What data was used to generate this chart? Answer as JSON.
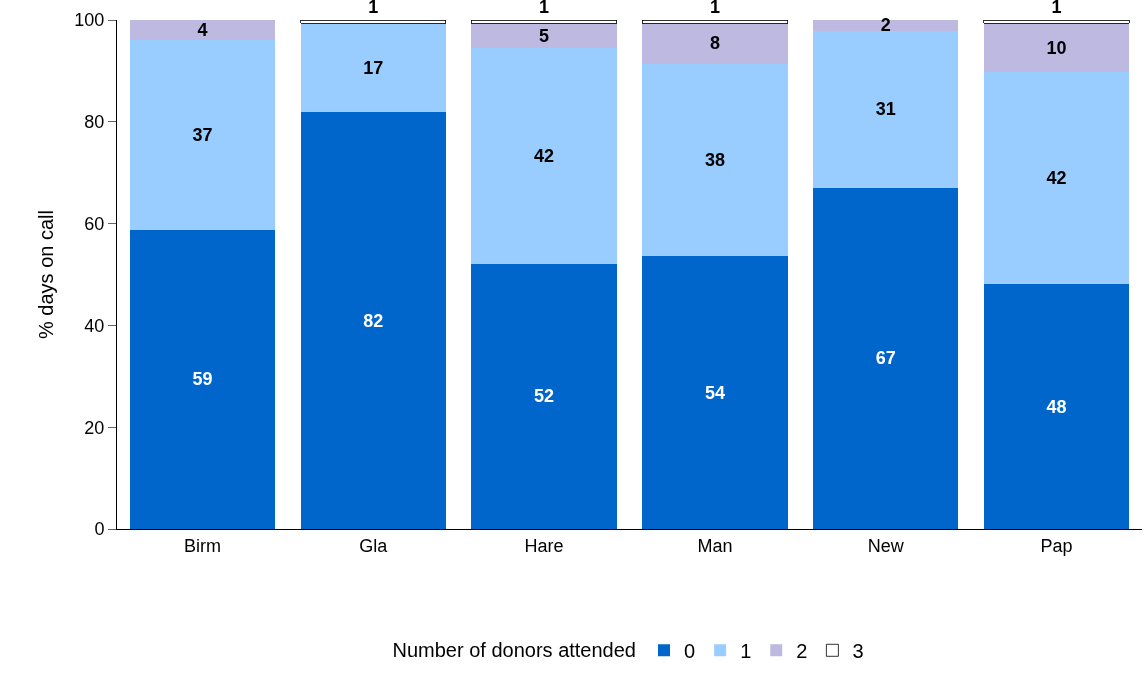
{
  "chart_data": {
    "type": "bar",
    "stacked": true,
    "ylabel": "% days on call",
    "legend_title": "Number of donors attended",
    "categories": [
      "Birm",
      "Gla",
      "Hare",
      "Man",
      "New",
      "Pap"
    ],
    "series": [
      {
        "name": "0",
        "color": "#0066cc",
        "values": [
          58.8,
          81.9,
          52.1,
          53.6,
          67.0,
          48.1
        ],
        "value_labels": [
          "59",
          "82",
          "52",
          "54",
          "67",
          "48"
        ]
      },
      {
        "name": "1",
        "color": "#99ccff",
        "values": [
          37.2,
          17.5,
          42.4,
          37.8,
          30.9,
          41.6
        ],
        "value_labels": [
          "37",
          "17",
          "42",
          "38",
          "31",
          "42"
        ]
      },
      {
        "name": "2",
        "color": "#bdb9e1",
        "values": [
          4.0,
          null,
          4.9,
          8.0,
          2.1,
          9.7
        ],
        "value_labels": [
          "4",
          null,
          "5",
          "8",
          "2",
          "10"
        ]
      },
      {
        "name": "3",
        "color": "#ffffff",
        "values": [
          null,
          0.6,
          0.6,
          0.6,
          null,
          0.6
        ],
        "value_labels": [
          null,
          "1",
          "1",
          "1",
          null,
          "1"
        ]
      }
    ],
    "ylim": [
      0,
      100
    ],
    "yticks": [
      0,
      20,
      40,
      60,
      80,
      100
    ],
    "legend": "bottom"
  }
}
